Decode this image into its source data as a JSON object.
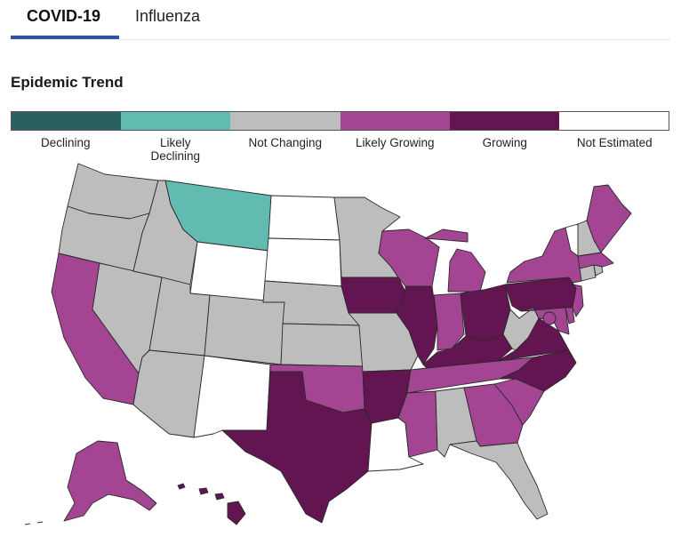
{
  "tabs": [
    {
      "label": "COVID-19",
      "active": true
    },
    {
      "label": "Influenza",
      "active": false
    }
  ],
  "section_title": "Epidemic Trend",
  "legend": [
    {
      "key": "declining",
      "lines": [
        "Declining"
      ],
      "color": "#2c6060"
    },
    {
      "key": "likely_declining",
      "lines": [
        "Likely",
        "Declining"
      ],
      "color": "#62bbb1"
    },
    {
      "key": "not_changing",
      "lines": [
        "Not Changing"
      ],
      "color": "#bdbdbd"
    },
    {
      "key": "likely_growing",
      "lines": [
        "Likely Growing"
      ],
      "color": "#a44593"
    },
    {
      "key": "growing",
      "lines": [
        "Growing"
      ],
      "color": "#631551"
    },
    {
      "key": "not_estimated",
      "lines": [
        "Not Estimated"
      ],
      "color": "#ffffff"
    }
  ],
  "states": {
    "WA": "not_changing",
    "OR": "not_changing",
    "CA": "likely_growing",
    "NV": "not_changing",
    "ID": "not_changing",
    "MT": "likely_declining",
    "WY": "not_estimated",
    "UT": "not_changing",
    "AZ": "not_changing",
    "NM": "not_estimated",
    "CO": "not_changing",
    "ND": "not_estimated",
    "SD": "not_estimated",
    "NE": "not_changing",
    "KS": "not_changing",
    "OK": "likely_growing",
    "TX": "growing",
    "MN": "not_changing",
    "IA": "growing",
    "MO": "not_changing",
    "AR": "growing",
    "LA": "not_estimated",
    "WI": "likely_growing",
    "IL": "growing",
    "MI": "likely_growing",
    "IN": "likely_growing",
    "OH": "growing",
    "KY": "growing",
    "TN": "likely_growing",
    "MS": "likely_growing",
    "AL": "not_changing",
    "GA": "likely_growing",
    "FL": "not_changing",
    "SC": "likely_growing",
    "NC": "growing",
    "VA": "growing",
    "WV": "not_changing",
    "MD": "likely_growing",
    "DE": "likely_growing",
    "DC": "likely_growing",
    "PA": "growing",
    "NJ": "likely_growing",
    "NY": "likely_growing",
    "CT": "not_changing",
    "RI": "not_changing",
    "MA": "likely_growing",
    "VT": "not_estimated",
    "NH": "not_changing",
    "ME": "likely_growing",
    "AK": "likely_growing",
    "HI": "growing"
  }
}
